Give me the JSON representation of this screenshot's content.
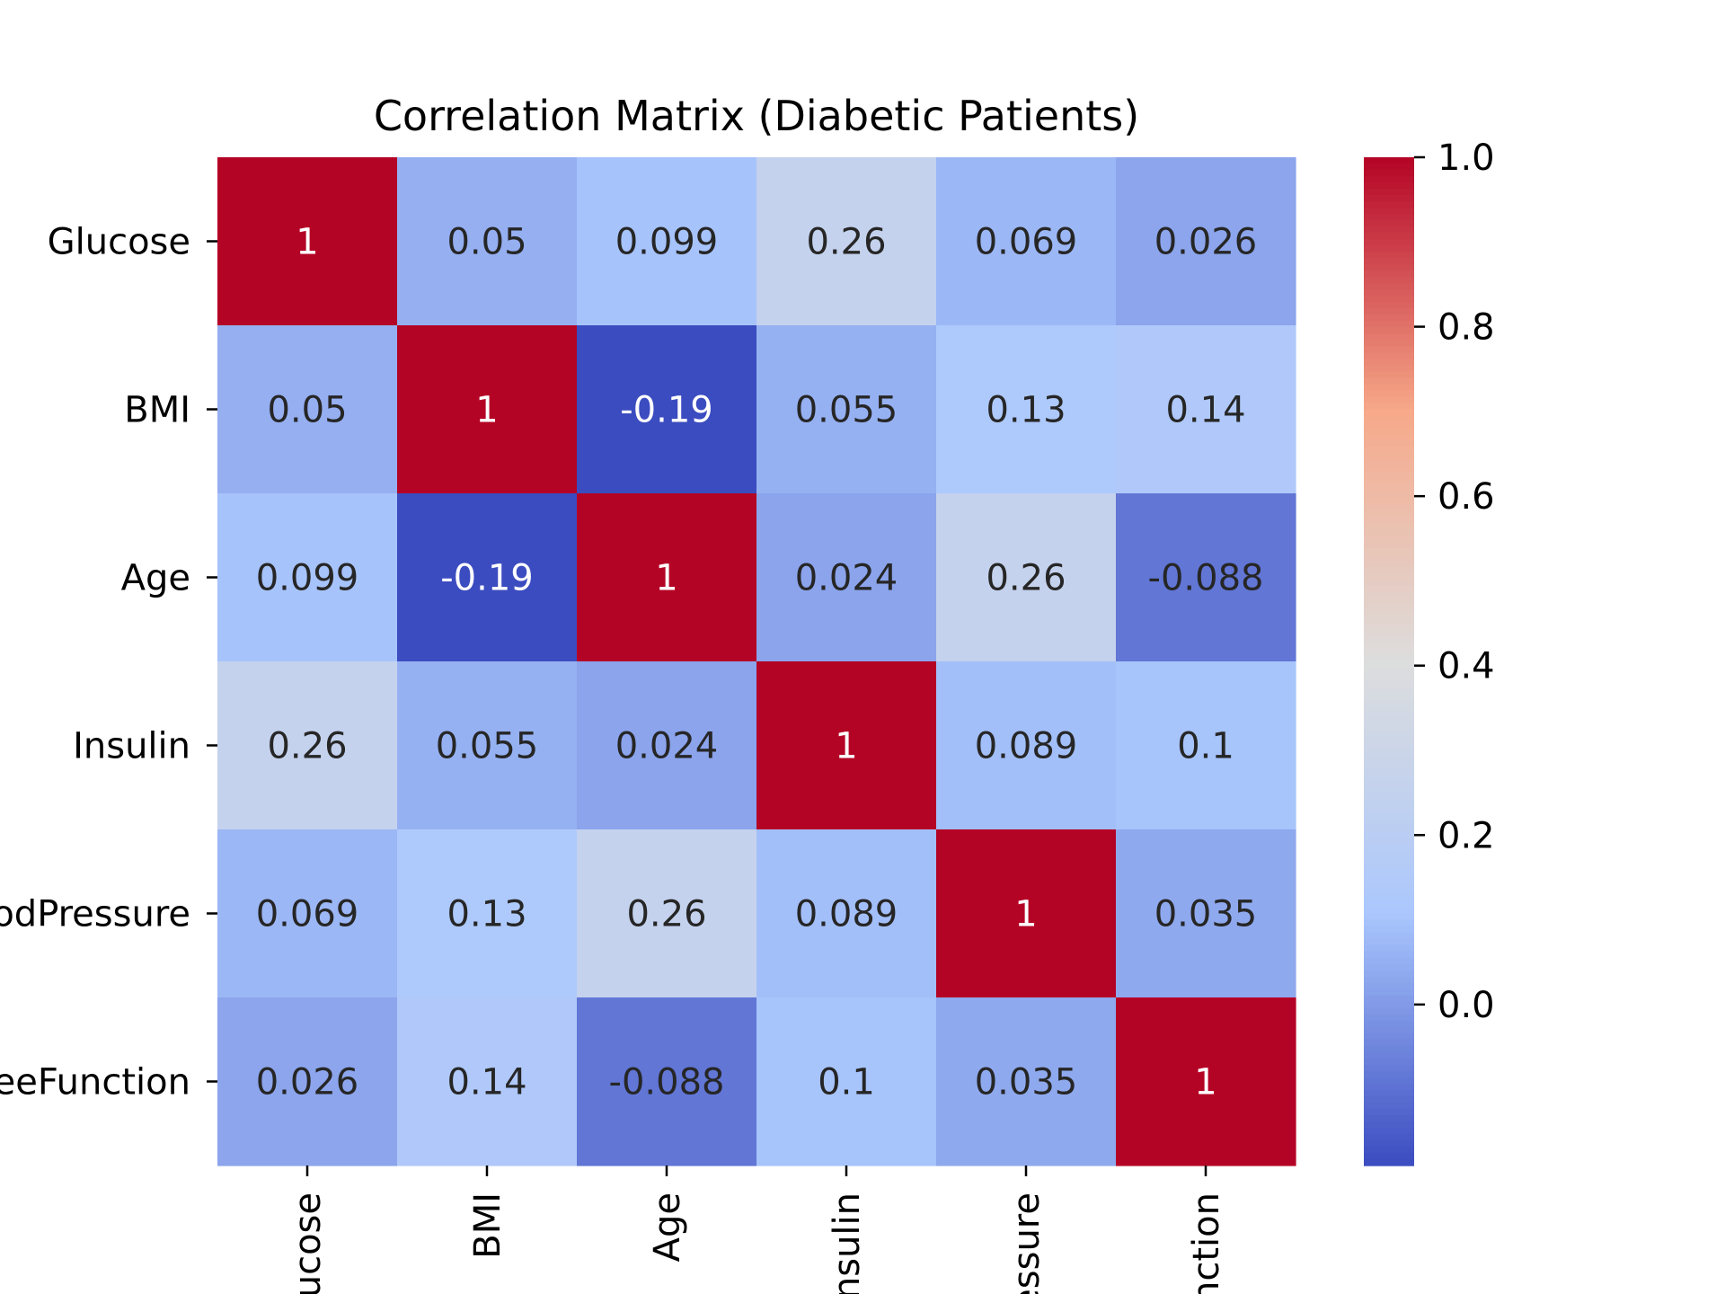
{
  "chart_data": {
    "type": "heatmap",
    "title": "Correlation Matrix (Diabetic Patients)",
    "row_labels_visible": [
      "Glucose",
      "BMI",
      "Age",
      "Insulin",
      "odPressure",
      "eeFunction"
    ],
    "col_labels_visible": [
      "ucose",
      "BMI",
      "Age",
      "nsulin",
      "essure",
      "nction"
    ],
    "values": [
      [
        1,
        0.05,
        0.099,
        0.26,
        0.069,
        0.026
      ],
      [
        0.05,
        1,
        -0.19,
        0.055,
        0.13,
        0.14
      ],
      [
        0.099,
        -0.19,
        1,
        0.024,
        0.26,
        -0.088
      ],
      [
        0.26,
        0.055,
        0.024,
        1,
        0.089,
        0.1
      ],
      [
        0.069,
        0.13,
        0.26,
        0.089,
        1,
        0.035
      ],
      [
        0.026,
        0.14,
        -0.088,
        0.1,
        0.035,
        1
      ]
    ],
    "cell_labels": [
      [
        "1",
        "0.05",
        "0.099",
        "0.26",
        "0.069",
        "0.026"
      ],
      [
        "0.05",
        "1",
        "-0.19",
        "0.055",
        "0.13",
        "0.14"
      ],
      [
        "0.099",
        "-0.19",
        "1",
        "0.024",
        "0.26",
        "-0.088"
      ],
      [
        "0.26",
        "0.055",
        "0.024",
        "1",
        "0.089",
        "0.1"
      ],
      [
        "0.069",
        "0.13",
        "0.26",
        "0.089",
        "1",
        "0.035"
      ],
      [
        "0.026",
        "0.14",
        "-0.088",
        "0.1",
        "0.035",
        "1"
      ]
    ],
    "colormap": "coolwarm",
    "colormap_stops": [
      "#3b4cc0",
      "#aac7fd",
      "#dddddd",
      "#f7a889",
      "#b40426"
    ],
    "vmin": -0.19,
    "vmax": 1.0,
    "colorbar": {
      "ticks": [
        0.0,
        0.2,
        0.4,
        0.6,
        0.8,
        1.0
      ],
      "tick_labels": [
        "0.0",
        "0.2",
        "0.4",
        "0.6",
        "0.8",
        "1.0"
      ]
    },
    "annot_dark_text_color": "#262626",
    "annot_light_text_color": "#ffffff"
  }
}
